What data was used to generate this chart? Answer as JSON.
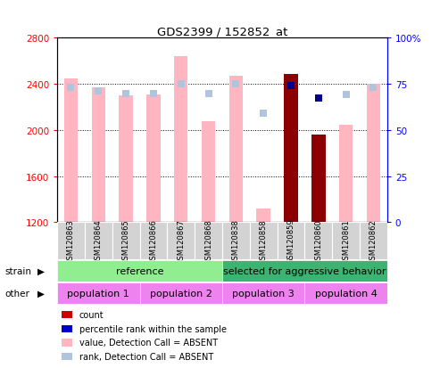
{
  "title": "GDS2399 / 152852_at",
  "samples": [
    "GSM120863",
    "GSM120864",
    "GSM120865",
    "GSM120866",
    "GSM120867",
    "GSM120868",
    "GSM120838",
    "GSM120858",
    "GSM120859",
    "GSM120860",
    "GSM120861",
    "GSM120862"
  ],
  "bar_values": [
    2450,
    2370,
    2300,
    2310,
    2640,
    2080,
    2470,
    1320,
    2490,
    1960,
    2050,
    2400
  ],
  "bar_colors": [
    "#FFB6C1",
    "#FFB6C1",
    "#FFB6C1",
    "#FFB6C1",
    "#FFB6C1",
    "#FFB6C1",
    "#FFB6C1",
    "#FFB6C1",
    "#8B0000",
    "#8B0000",
    "#FFB6C1",
    "#FFB6C1"
  ],
  "rank_dots": [
    2370,
    2340,
    2320,
    2320,
    2400,
    2320,
    2400,
    2150,
    2390,
    2280,
    2310,
    2370
  ],
  "rank_dot_colors": [
    "#B0C4DE",
    "#B0C4DE",
    "#B0C4DE",
    "#B0C4DE",
    "#B0C4DE",
    "#B0C4DE",
    "#B0C4DE",
    "#B0C4DE",
    "#00008B",
    "#00008B",
    "#B0C4DE",
    "#B0C4DE"
  ],
  "ymin": 1200,
  "ymax": 2800,
  "y2min": 0,
  "y2max": 100,
  "yticks": [
    1200,
    1600,
    2000,
    2400,
    2800
  ],
  "y2ticks": [
    0,
    25,
    50,
    75,
    100
  ],
  "y2ticklabels": [
    "0",
    "25",
    "50",
    "75",
    "100%"
  ],
  "strain_ref_color": "#90EE90",
  "strain_sel_color": "#3CB371",
  "pop_color": "#EE82EE",
  "legend_colors": [
    "#CC0000",
    "#0000CC",
    "#FFB6C1",
    "#B0C4DE"
  ],
  "legend_labels": [
    "count",
    "percentile rank within the sample",
    "value, Detection Call = ABSENT",
    "rank, Detection Call = ABSENT"
  ],
  "bar_width": 0.5,
  "dot_size": 40,
  "n_ref": 6,
  "pop_boundaries": [
    0,
    3,
    6,
    9,
    12
  ],
  "pop_labels": [
    "population 1",
    "population 2",
    "population 3",
    "population 4"
  ]
}
